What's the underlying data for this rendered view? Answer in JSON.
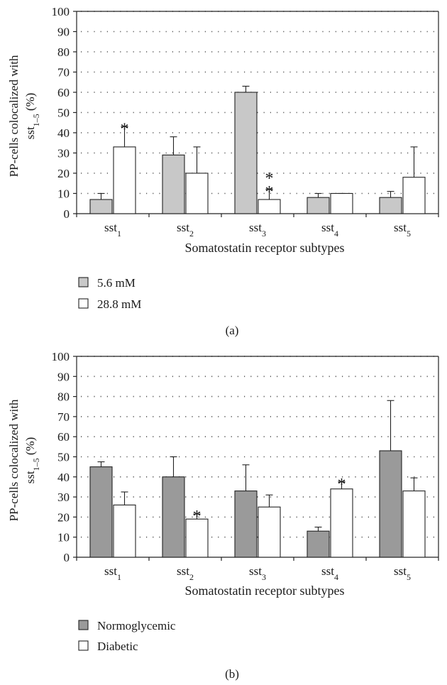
{
  "chart_data": [
    {
      "type": "bar",
      "panel_label": "(a)",
      "categories": [
        "sst",
        "sst",
        "sst",
        "sst",
        "sst"
      ],
      "category_subscripts": [
        "1",
        "2",
        "3",
        "4",
        "5"
      ],
      "xlabel": "Somatostatin receptor subtypes",
      "ylabel_line1": "PP-cells colocalized with",
      "ylabel_line2": "sst",
      "ylabel_subscript": "1–5",
      "ylabel_suffix": "(%)",
      "ylim": [
        0,
        100
      ],
      "yticks": [
        0,
        10,
        20,
        30,
        40,
        50,
        60,
        70,
        80,
        90,
        100
      ],
      "grid": true,
      "legend_position": "bottom-left",
      "series": [
        {
          "name": "5.6 mM",
          "color": "#c8c8c8",
          "values": [
            7,
            29,
            60,
            8,
            8
          ],
          "errors": [
            3,
            9,
            3,
            2,
            3
          ],
          "marks": [
            "",
            "",
            "",
            "",
            ""
          ]
        },
        {
          "name": "28.8 mM",
          "color": "#ffffff",
          "values": [
            33,
            20,
            7,
            10,
            18
          ],
          "errors": [
            10,
            13,
            5,
            0,
            15
          ],
          "marks": [
            "*",
            "",
            "**",
            "",
            ""
          ]
        }
      ]
    },
    {
      "type": "bar",
      "panel_label": "(b)",
      "categories": [
        "sst",
        "sst",
        "sst",
        "sst",
        "sst"
      ],
      "category_subscripts": [
        "1",
        "2",
        "3",
        "4",
        "5"
      ],
      "xlabel": "Somatostatin receptor subtypes",
      "ylabel_line1": "PP-cells colocalized with",
      "ylabel_line2": "sst",
      "ylabel_subscript": "1–5",
      "ylabel_suffix": "(%)",
      "ylim": [
        0,
        100
      ],
      "yticks": [
        0,
        10,
        20,
        30,
        40,
        50,
        60,
        70,
        80,
        90,
        100
      ],
      "grid": true,
      "legend_position": "bottom-left",
      "series": [
        {
          "name": "Normoglycemic",
          "color": "#9a9a9a",
          "values": [
            45,
            40,
            33,
            13,
            53
          ],
          "errors": [
            2.5,
            10,
            13,
            2,
            25
          ],
          "marks": [
            "",
            "",
            "",
            "",
            ""
          ]
        },
        {
          "name": "Diabetic",
          "color": "#ffffff",
          "values": [
            26,
            19,
            25,
            34,
            33
          ],
          "errors": [
            6.5,
            2.5,
            6,
            3.5,
            6.5
          ],
          "marks": [
            "",
            "*",
            "",
            "*",
            ""
          ]
        }
      ]
    }
  ]
}
